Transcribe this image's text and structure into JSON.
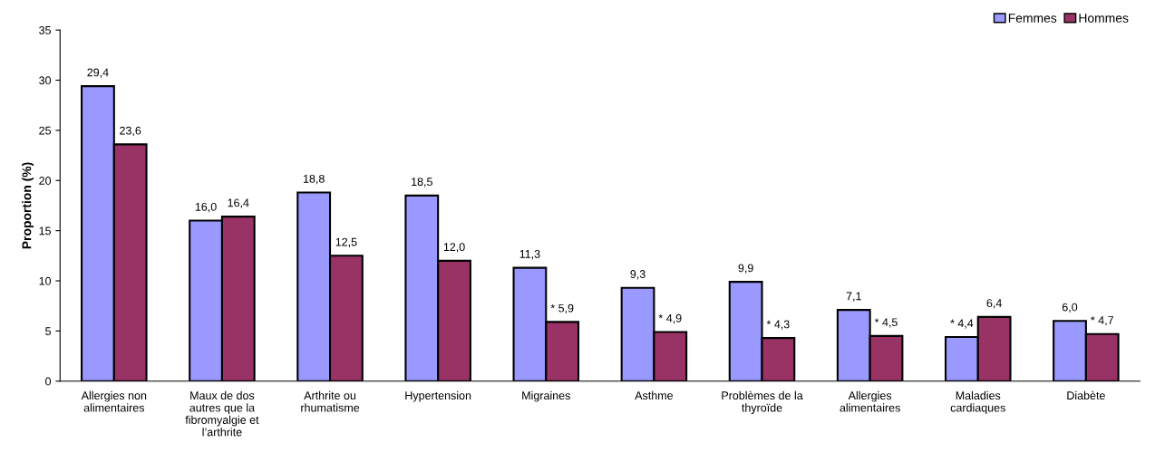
{
  "chart_data": {
    "type": "bar",
    "ylabel": "Proportion (%)",
    "categories": [
      "Allergies non\nalimentaires",
      "Maux de dos\nautres que la\nfibromyalgie et\nl’arthrite",
      "Arthrite ou\nrhumatisme",
      "Hypertension",
      "Migraines",
      "Asthme",
      "Problèmes de la\nthyroïde",
      "Allergies\nalimentaires",
      "Maladies\ncardiaques",
      "Diabète"
    ],
    "series": [
      {
        "name": "Femmes",
        "color": "#9999ff",
        "values": [
          29.4,
          16.0,
          18.8,
          18.5,
          11.3,
          9.3,
          9.9,
          7.1,
          4.4,
          6.0
        ],
        "value_labels": [
          "29,4",
          "16,0",
          "18,8",
          "18,5",
          "11,3",
          "9,3",
          "9,9",
          "7,1",
          "* 4,4",
          "6,0"
        ]
      },
      {
        "name": "Hommes",
        "color": "#993366",
        "values": [
          23.6,
          16.4,
          12.5,
          12.0,
          5.9,
          4.9,
          4.3,
          4.5,
          6.4,
          4.7
        ],
        "value_labels": [
          "23,6",
          "16,4",
          "12,5",
          "12,0",
          "* 5,9",
          "* 4,9",
          "* 4,3",
          "* 4,5",
          "6,4",
          "* 4,7"
        ]
      }
    ],
    "ylim": [
      0,
      35
    ],
    "yticks": [
      0,
      5,
      10,
      15,
      20,
      25,
      30,
      35
    ],
    "grid": false,
    "legend": "top right"
  }
}
